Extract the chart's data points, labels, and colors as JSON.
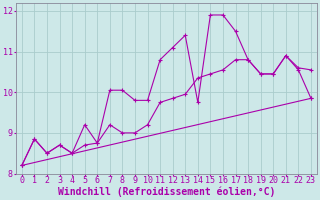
{
  "bg_color": "#cde8e8",
  "grid_color": "#aacccc",
  "line_color": "#aa00aa",
  "marker": "+",
  "xlabel": "Windchill (Refroidissement éolien,°C)",
  "xlabel_fontsize": 7,
  "tick_fontsize": 6,
  "xlim": [
    -0.5,
    23.5
  ],
  "ylim": [
    8,
    12.2
  ],
  "yticks": [
    8,
    9,
    10,
    11,
    12
  ],
  "xticks": [
    0,
    1,
    2,
    3,
    4,
    5,
    6,
    7,
    8,
    9,
    10,
    11,
    12,
    13,
    14,
    15,
    16,
    17,
    18,
    19,
    20,
    21,
    22,
    23
  ],
  "line1_x": [
    0,
    1,
    2,
    3,
    4,
    5,
    6,
    7,
    8,
    9,
    10,
    11,
    12,
    13,
    14,
    15,
    16,
    17,
    18,
    19,
    20,
    21,
    22,
    23
  ],
  "line1_y": [
    8.2,
    8.85,
    8.5,
    8.7,
    8.5,
    8.7,
    8.75,
    10.05,
    10.05,
    9.8,
    9.8,
    10.8,
    11.1,
    11.4,
    9.75,
    11.9,
    11.9,
    11.5,
    10.8,
    10.45,
    10.45,
    10.9,
    10.6,
    10.55
  ],
  "line2_x": [
    0,
    1,
    2,
    3,
    4,
    5,
    6,
    7,
    8,
    9,
    10,
    11,
    12,
    13,
    14,
    15,
    16,
    17,
    18,
    19,
    20,
    21,
    22,
    23
  ],
  "line2_y": [
    8.2,
    8.85,
    8.5,
    8.7,
    8.5,
    9.2,
    8.75,
    9.2,
    9.0,
    9.0,
    9.2,
    9.75,
    9.85,
    9.95,
    10.35,
    10.45,
    10.55,
    10.8,
    10.8,
    10.45,
    10.45,
    10.9,
    10.55,
    9.85
  ],
  "line3_x": [
    0,
    23
  ],
  "line3_y": [
    8.2,
    9.85
  ]
}
